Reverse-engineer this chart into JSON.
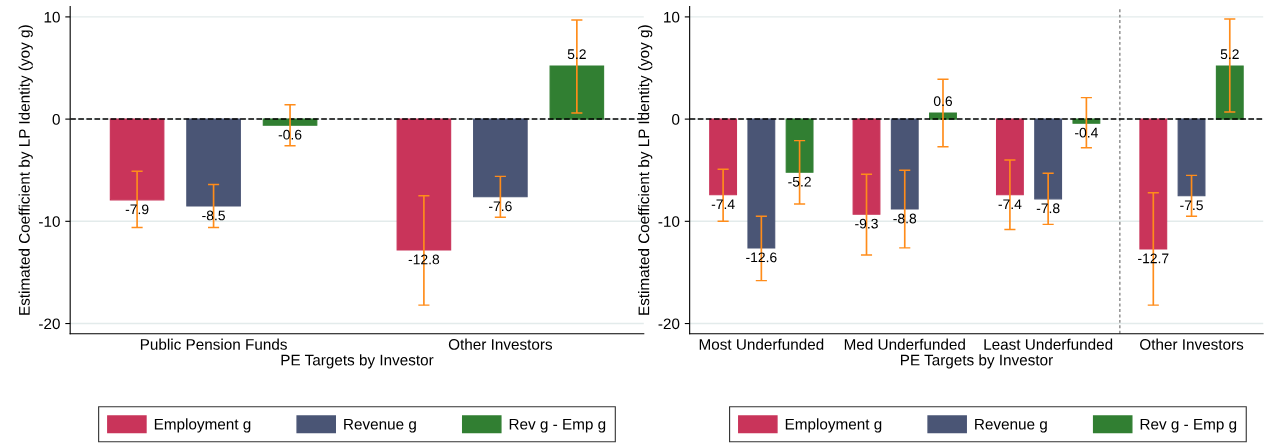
{
  "chart_data": [
    {
      "type": "bar",
      "xlabel": "PE Targets by Investor",
      "ylabel": "Estimated Coefficient by LP Identity (yoy g)",
      "categories": [
        "Public Pension Funds",
        "Other Investors"
      ],
      "series": [
        {
          "name": "Employment g",
          "color": "#c9345a",
          "values": [
            -7.9,
            -12.8
          ],
          "errors": [
            [
              -10.6,
              -5.1
            ],
            [
              -18.2,
              -7.5
            ]
          ]
        },
        {
          "name": "Revenue g",
          "color": "#4a5575",
          "values": [
            -8.5,
            -7.6
          ],
          "errors": [
            [
              -10.6,
              -6.4
            ],
            [
              -9.6,
              -5.6
            ]
          ]
        },
        {
          "name": "Rev g - Emp g",
          "color": "#317f32",
          "values": [
            -0.6,
            5.2
          ],
          "errors": [
            [
              -2.6,
              1.4
            ],
            [
              0.6,
              9.7
            ]
          ]
        }
      ],
      "ylim": [
        -21,
        11
      ],
      "yticks": [
        -20,
        -10,
        0,
        10
      ],
      "grid": "y",
      "legend": "bottom",
      "data_labels": true,
      "ref_lines": [
        {
          "axis": "y",
          "value": 0,
          "line_style": "dashed",
          "color": "#000000"
        }
      ]
    },
    {
      "type": "bar",
      "xlabel": "PE Targets by Investor",
      "ylabel": "Estimated Coefficient by LP Identity (yoy g)",
      "categories": [
        "Most Underfunded",
        "Med Underfunded",
        "Least Underfunded",
        "Other Investors"
      ],
      "series": [
        {
          "name": "Employment g",
          "color": "#c9345a",
          "values": [
            -7.4,
            -9.3,
            -7.4,
            -12.7
          ],
          "errors": [
            [
              -10.0,
              -4.9
            ],
            [
              -13.3,
              -5.4
            ],
            [
              -10.8,
              -4.0
            ],
            [
              -18.2,
              -7.2
            ]
          ]
        },
        {
          "name": "Revenue g",
          "color": "#4a5575",
          "values": [
            -12.6,
            -8.8,
            -7.8,
            -7.5
          ],
          "errors": [
            [
              -15.8,
              -9.5
            ],
            [
              -12.6,
              -5.0
            ],
            [
              -10.3,
              -5.3
            ],
            [
              -9.5,
              -5.5
            ]
          ]
        },
        {
          "name": "Rev g - Emp g",
          "color": "#317f32",
          "values": [
            -5.2,
            0.6,
            -0.4,
            5.2
          ],
          "errors": [
            [
              -8.3,
              -2.1
            ],
            [
              -2.7,
              3.9
            ],
            [
              -2.8,
              2.1
            ],
            [
              0.7,
              9.8
            ]
          ]
        }
      ],
      "ylim": [
        -21,
        11
      ],
      "yticks": [
        -20,
        -10,
        0,
        10
      ],
      "grid": "y",
      "legend": "bottom",
      "data_labels": true,
      "ref_lines": [
        {
          "axis": "y",
          "value": 0,
          "line_style": "dashed",
          "color": "#000000"
        }
      ]
    }
  ]
}
